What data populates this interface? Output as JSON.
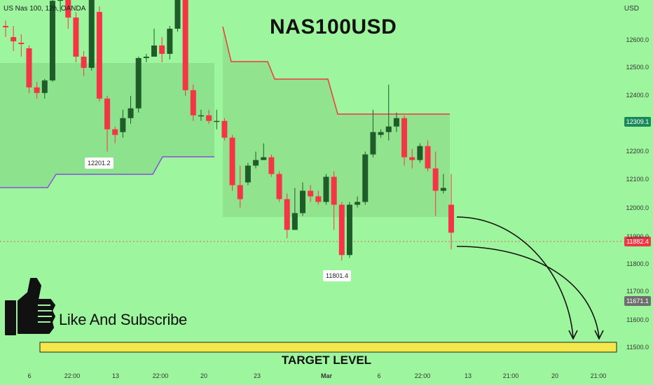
{
  "header": {
    "symbol": "US Nas 100, 12h, OANDA",
    "currency": "USD"
  },
  "title": "NAS100USD",
  "annotations": {
    "high_label": "12201.2",
    "low_label": "11801.4",
    "cta": "Like And Subscribe",
    "target": "TARGET LEVEL"
  },
  "badges": {
    "upper": "12309.1",
    "current": "11882.4",
    "lower": "11671.1"
  },
  "colors": {
    "background": "#9df59d",
    "bull": "#1e5c2a",
    "bear": "#f23645",
    "target_bar": "#f5e84a",
    "upper_badge": "#1b8a5a",
    "current_badge": "#f23645",
    "lower_badge": "#6e6e6e"
  },
  "icons": [
    "thumbs-up-icon",
    "arrow-curve-icon"
  ],
  "chart_data": {
    "type": "candlestick",
    "y_ticks": [
      "12600.0",
      "12500.0",
      "12400.0",
      "12200.0",
      "12100.0",
      "12000.0",
      "11900.0",
      "11800.0",
      "11700.0",
      "11600.0",
      "11500.0"
    ],
    "x_ticks": [
      "6",
      "22:00",
      "13",
      "22:00",
      "20",
      "23",
      "Mar",
      "6",
      "22:00",
      "13",
      "21:00",
      "20",
      "21:00"
    ],
    "candles": [
      [
        12650,
        12645,
        12610,
        12670
      ],
      [
        12610,
        12595,
        12560,
        12650
      ],
      [
        12590,
        12585,
        12540,
        12620
      ],
      [
        12570,
        12430,
        12410,
        12580
      ],
      [
        12430,
        12410,
        12390,
        12450
      ],
      [
        12410,
        12455,
        12390,
        12460
      ],
      [
        12455,
        12740,
        12450,
        12760
      ],
      [
        12740,
        12750,
        12700,
        12790
      ],
      [
        12750,
        12680,
        12640,
        12760
      ],
      [
        12680,
        12540,
        12520,
        12700
      ],
      [
        12540,
        12500,
        12470,
        12560
      ],
      [
        12500,
        12750,
        12490,
        12760
      ],
      [
        12700,
        12390,
        12380,
        12720
      ],
      [
        12390,
        12280,
        12200,
        12400
      ],
      [
        12280,
        12260,
        12230,
        12290
      ],
      [
        12270,
        12320,
        12250,
        12350
      ],
      [
        12320,
        12355,
        12300,
        12400
      ],
      [
        12355,
        12535,
        12340,
        12540
      ],
      [
        12535,
        12540,
        12520,
        12550
      ],
      [
        12540,
        12580,
        12540,
        12640
      ],
      [
        12580,
        12550,
        12520,
        12610
      ],
      [
        12550,
        12640,
        12530,
        12650
      ],
      [
        12640,
        12760,
        12630,
        12780
      ],
      [
        12760,
        12420,
        12400,
        12790
      ],
      [
        12420,
        12330,
        12310,
        12440
      ],
      [
        12330,
        12330,
        12310,
        12350
      ],
      [
        12330,
        12310,
        12300,
        12350
      ],
      [
        12310,
        12310,
        12280,
        12350
      ],
      [
        12310,
        12250,
        12240,
        12320
      ],
      [
        12250,
        12080,
        12060,
        12260
      ],
      [
        12080,
        12030,
        12000,
        12150
      ],
      [
        12090,
        12150,
        12080,
        12160
      ],
      [
        12150,
        12170,
        12140,
        12200
      ],
      [
        12170,
        12180,
        12170,
        12230
      ],
      [
        12180,
        12120,
        12110,
        12190
      ],
      [
        12120,
        12030,
        12020,
        12130
      ],
      [
        12030,
        11920,
        11890,
        12050
      ],
      [
        11920,
        11980,
        11920,
        12070
      ],
      [
        11980,
        12060,
        11970,
        12090
      ],
      [
        12060,
        12040,
        12020,
        12080
      ],
      [
        12040,
        12020,
        12010,
        12060
      ],
      [
        12020,
        12110,
        12010,
        12120
      ],
      [
        12110,
        12010,
        11920,
        12130
      ],
      [
        12010,
        11830,
        11810,
        12020
      ],
      [
        11830,
        12010,
        11820,
        12020
      ],
      [
        12010,
        12020,
        12000,
        12040
      ],
      [
        12020,
        12190,
        12010,
        12200
      ],
      [
        12190,
        12270,
        12180,
        12350
      ],
      [
        12260,
        12270,
        12250,
        12280
      ],
      [
        12270,
        12290,
        12240,
        12440
      ],
      [
        12290,
        12320,
        12270,
        12340
      ],
      [
        12320,
        12180,
        12150,
        12330
      ],
      [
        12180,
        12170,
        12140,
        12210
      ],
      [
        12170,
        12220,
        12160,
        12230
      ],
      [
        12220,
        12140,
        12130,
        12240
      ],
      [
        12140,
        12060,
        11970,
        12200
      ],
      [
        12060,
        12070,
        12050,
        12120
      ],
      [
        12010,
        11910,
        11850,
        12120
      ]
    ]
  }
}
